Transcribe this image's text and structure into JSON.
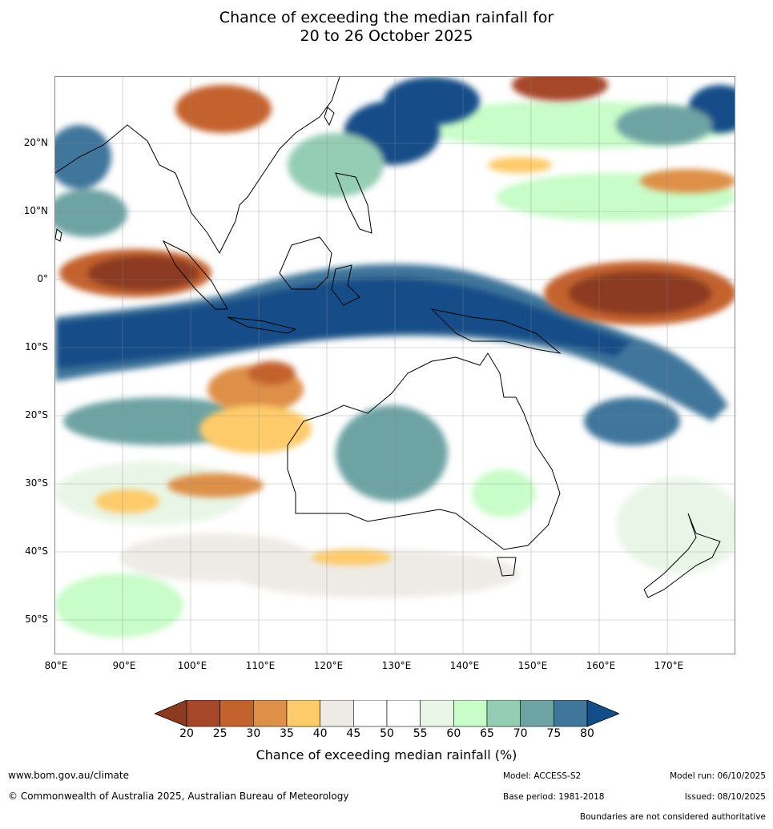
{
  "title_line1": "Chance of exceeding the median rainfall for",
  "title_line2": "20 to 26 October 2025",
  "lat_labels": [
    "20°N",
    "10°N",
    "0°",
    "10°S",
    "20°S",
    "30°S",
    "40°S",
    "50°S"
  ],
  "lon_labels": [
    "80°E",
    "90°E",
    "100°E",
    "110°E",
    "120°E",
    "130°E",
    "140°E",
    "150°E",
    "160°E",
    "170°E"
  ],
  "colorbar": {
    "ticks": [
      "20",
      "25",
      "30",
      "35",
      "40",
      "45",
      "50",
      "55",
      "60",
      "65",
      "70",
      "75",
      "80"
    ],
    "colors": [
      "#a6472a",
      "#c4622e",
      "#de9048",
      "#fecb6a",
      "#eeebe6",
      "#ffffff",
      "#ffffff",
      "#e9f6e7",
      "#c8fcc8",
      "#94cdb4",
      "#6ea3a4",
      "#41769b"
    ],
    "under_color": "#8c3a20",
    "over_color": "#134d88",
    "title": "Chance of exceeding median rainfall (%)"
  },
  "footer": {
    "url": "www.bom.gov.au/climate",
    "copyright": "© Commonwealth of Australia 2025, Australian Bureau of Meteorology",
    "model": "Model: ACCESS-S2",
    "base_period": "Base period: 1981-2018",
    "model_run": "Model run: 06/10/2025",
    "issued": "Issued: 08/10/2025",
    "disclaimer": "Boundaries are not considered authoritative"
  }
}
